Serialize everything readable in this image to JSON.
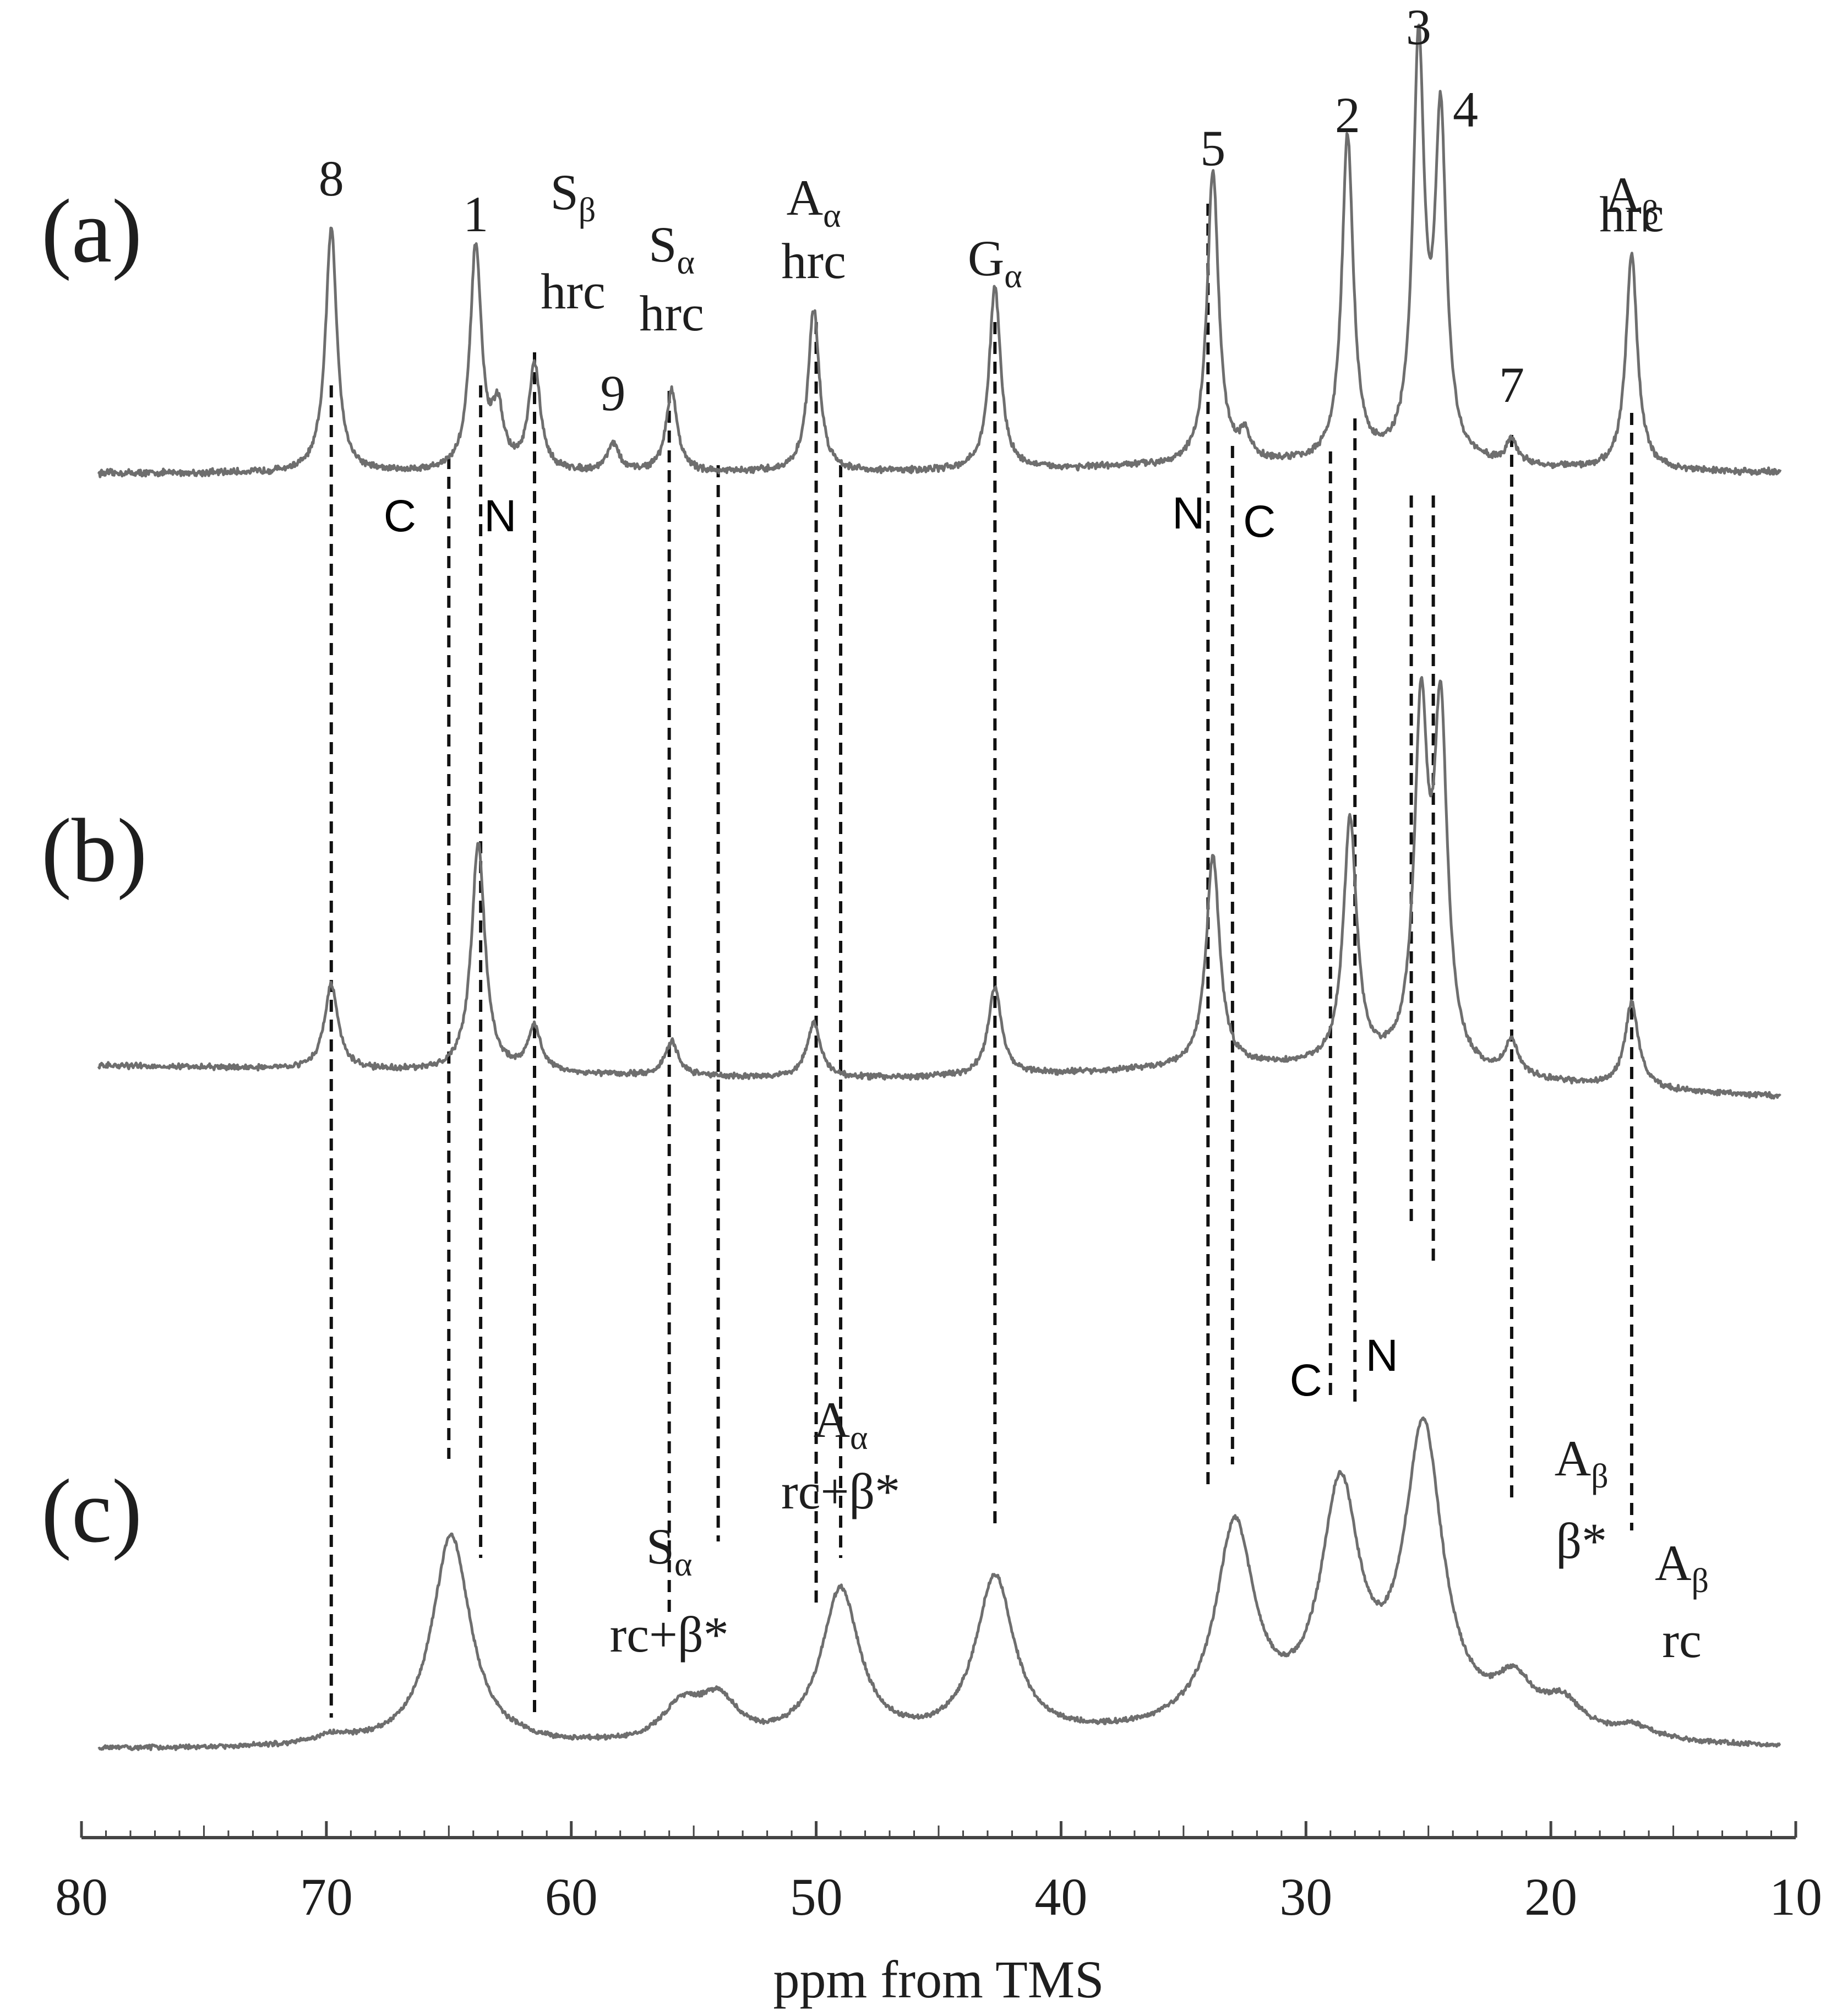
{
  "chart_data": {
    "type": "line",
    "title": "",
    "xlabel": "ppm from TMS",
    "ylabel": "",
    "xlim": [
      80,
      10
    ],
    "x_reversed": true,
    "grid": false,
    "x_ticks": [
      "80",
      "70",
      "60",
      "50",
      "40",
      "30",
      "20",
      "10"
    ],
    "colors": {
      "trace": "#6e6e6e",
      "guide": "#111111",
      "text": "#1e1e1e"
    },
    "panels": [
      {
        "label": "(a)",
        "peaks": [
          {
            "ppm": 69.8,
            "height": 0.6
          },
          {
            "ppm": 63.9,
            "height": 0.55
          },
          {
            "ppm": 63.0,
            "height": 0.14
          },
          {
            "ppm": 61.5,
            "height": 0.26
          },
          {
            "ppm": 58.3,
            "height": 0.07
          },
          {
            "ppm": 55.9,
            "height": 0.2
          },
          {
            "ppm": 50.1,
            "height": 0.4
          },
          {
            "ppm": 42.7,
            "height": 0.45
          },
          {
            "ppm": 33.8,
            "height": 0.72
          },
          {
            "ppm": 32.5,
            "height": 0.06
          },
          {
            "ppm": 28.3,
            "height": 0.8
          },
          {
            "ppm": 25.4,
            "height": 1.0
          },
          {
            "ppm": 24.5,
            "height": 0.82
          },
          {
            "ppm": 21.6,
            "height": 0.06
          },
          {
            "ppm": 16.7,
            "height": 0.53
          }
        ],
        "annotations": [
          {
            "ppm": 69.8,
            "lines": [
              "8"
            ]
          },
          {
            "ppm": 63.9,
            "lines": [
              "1"
            ]
          },
          {
            "ppm": 61.5,
            "lines": [
              "S_β",
              "hrc"
            ]
          },
          {
            "ppm": 58.3,
            "lines": [
              "9"
            ]
          },
          {
            "ppm": 55.9,
            "lines": [
              "S_α",
              "hrc"
            ]
          },
          {
            "ppm": 50.1,
            "lines": [
              "A_α",
              "hrc"
            ]
          },
          {
            "ppm": 42.7,
            "lines": [
              "G_α"
            ]
          },
          {
            "ppm": 33.8,
            "lines": [
              "5"
            ]
          },
          {
            "ppm": 28.3,
            "lines": [
              "2"
            ]
          },
          {
            "ppm": 25.4,
            "lines": [
              "3"
            ]
          },
          {
            "ppm": 24.5,
            "lines": [
              "4"
            ]
          },
          {
            "ppm": 21.6,
            "lines": [
              "7"
            ]
          },
          {
            "ppm": 16.7,
            "lines": [
              "A_β",
              "hrc"
            ]
          }
        ]
      },
      {
        "label": "(b)",
        "peaks": [
          {
            "ppm": 69.8,
            "height": 0.25
          },
          {
            "ppm": 63.8,
            "height": 0.67
          },
          {
            "ppm": 61.5,
            "height": 0.13
          },
          {
            "ppm": 55.9,
            "height": 0.1
          },
          {
            "ppm": 50.1,
            "height": 0.16
          },
          {
            "ppm": 42.7,
            "height": 0.26
          },
          {
            "ppm": 33.8,
            "height": 0.62
          },
          {
            "ppm": 28.2,
            "height": 0.72
          },
          {
            "ppm": 25.3,
            "height": 1.0
          },
          {
            "ppm": 24.5,
            "height": 1.0
          },
          {
            "ppm": 21.6,
            "height": 0.1
          },
          {
            "ppm": 16.7,
            "height": 0.25
          }
        ],
        "annotations": []
      },
      {
        "label": "(c)",
        "peaks": [
          {
            "ppm": 69.7,
            "height": 0.03
          },
          {
            "ppm": 64.9,
            "height": 0.72
          },
          {
            "ppm": 55.5,
            "height": 0.12
          },
          {
            "ppm": 54.0,
            "height": 0.14
          },
          {
            "ppm": 49.0,
            "height": 0.52
          },
          {
            "ppm": 42.7,
            "height": 0.55
          },
          {
            "ppm": 32.9,
            "height": 0.68
          },
          {
            "ppm": 28.6,
            "height": 0.78
          },
          {
            "ppm": 25.2,
            "height": 1.0
          },
          {
            "ppm": 21.5,
            "height": 0.15
          },
          {
            "ppm": 19.5,
            "height": 0.1
          },
          {
            "ppm": 16.6,
            "height": 0.04
          }
        ],
        "annotations": [
          {
            "ppm": 56.0,
            "lines": [
              "S_α",
              "rc+β*"
            ]
          },
          {
            "ppm": 49.0,
            "lines": [
              "A_α",
              "rc+β*"
            ]
          },
          {
            "ppm": 19.2,
            "lines": [
              "A_β",
              "β*"
            ]
          },
          {
            "ppm": 16.0,
            "lines": [
              "A_β",
              "rc"
            ]
          }
        ]
      }
    ],
    "guide_lines": [
      {
        "ppm": 69.8
      },
      {
        "ppm": 65.0
      },
      {
        "ppm": 63.7
      },
      {
        "ppm": 61.5
      },
      {
        "ppm": 56.0
      },
      {
        "ppm": 54.0
      },
      {
        "ppm": 50.0
      },
      {
        "ppm": 49.0
      },
      {
        "ppm": 42.7
      },
      {
        "ppm": 34.0
      },
      {
        "ppm": 33.0
      },
      {
        "ppm": 29.0
      },
      {
        "ppm": 28.0
      },
      {
        "ppm": 25.7
      },
      {
        "ppm": 24.8
      },
      {
        "ppm": 21.6
      },
      {
        "ppm": 16.7
      }
    ],
    "nc_labels": [
      {
        "ppm": 67.0,
        "text": "C"
      },
      {
        "ppm": 62.9,
        "text": "N"
      },
      {
        "ppm": 34.8,
        "text": "N"
      },
      {
        "ppm": 31.9,
        "text": "C"
      },
      {
        "ppm": 30.0,
        "text": "C"
      },
      {
        "ppm": 26.9,
        "text": "N"
      }
    ]
  }
}
